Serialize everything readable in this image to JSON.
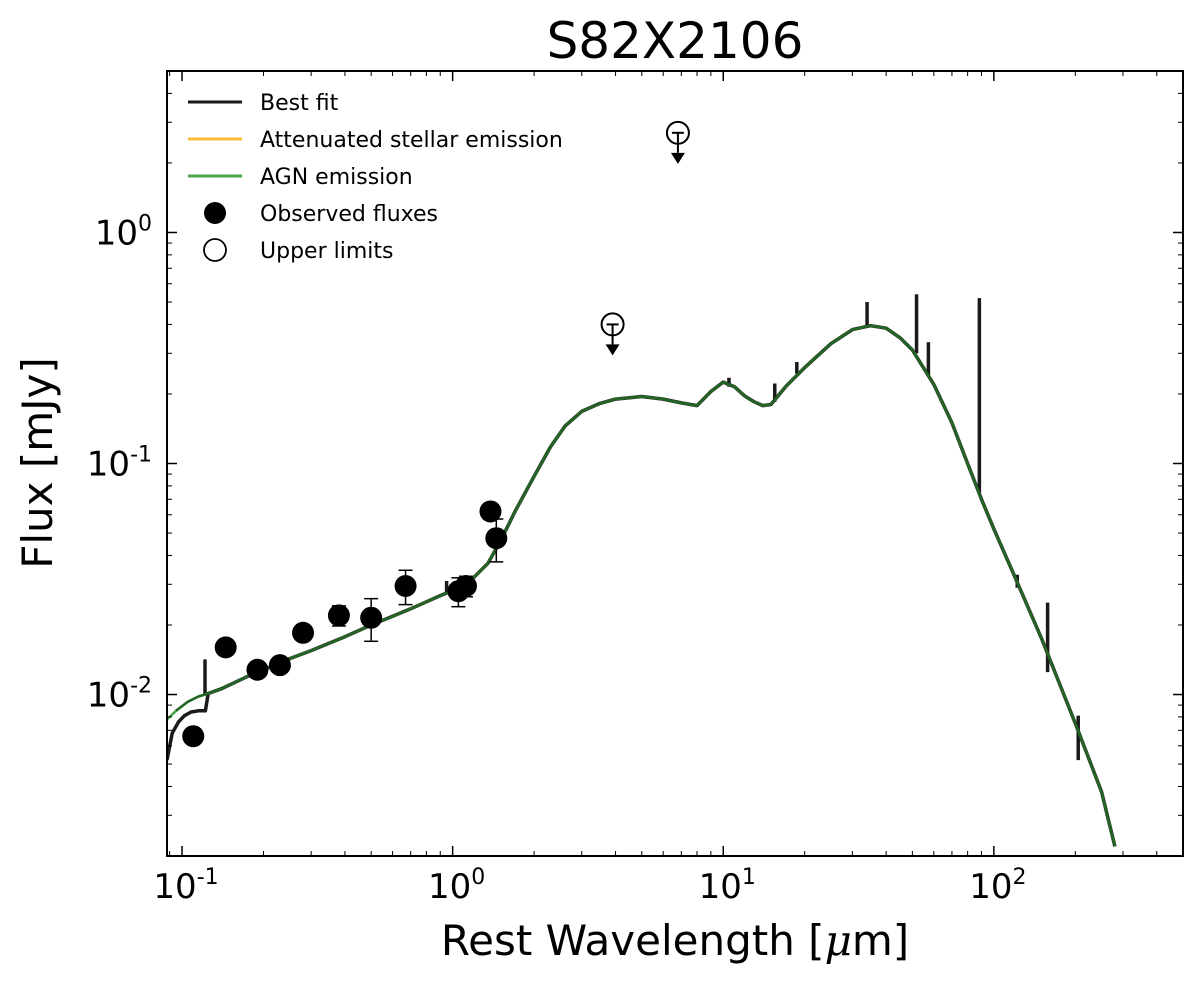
{
  "chart_data": {
    "type": "line",
    "title": "S82X2106",
    "xlabel": "Rest Wavelength [",
    "xlabel_symbol": "μ",
    "xlabel_unit": "m]",
    "ylabel": "Flux [mJy]",
    "xscale": "log",
    "yscale": "log",
    "xlim": [
      0.088,
      500
    ],
    "ylim": [
      0.002,
      5.0
    ],
    "grid": false,
    "legend_position": "top-left",
    "x_ticks": [
      {
        "base": "10",
        "exp": "-1",
        "value": 0.1
      },
      {
        "base": "10",
        "exp": "0",
        "value": 1
      },
      {
        "base": "10",
        "exp": "1",
        "value": 10
      },
      {
        "base": "10",
        "exp": "2",
        "value": 100
      }
    ],
    "y_ticks": [
      {
        "base": "10",
        "exp": "-2",
        "value": 0.01
      },
      {
        "base": "10",
        "exp": "-1",
        "value": 0.1
      },
      {
        "base": "10",
        "exp": "0",
        "value": 1
      }
    ],
    "legend": [
      {
        "label": "Best fit",
        "kind": "line",
        "color": "#1a1a1a"
      },
      {
        "label": "Attenuated stellar emission",
        "kind": "line",
        "color": "#fbbc3a"
      },
      {
        "label": "AGN emission",
        "kind": "line",
        "color": "#4aa24a"
      },
      {
        "label": "Observed fluxes",
        "kind": "filled-circle",
        "color": "#000000"
      },
      {
        "label": "Upper limits",
        "kind": "open-circle",
        "color": "#000000"
      }
    ],
    "series": [
      {
        "name": "AGN emission",
        "color": "#4aa24a",
        "x": [
          0.088,
          0.095,
          0.105,
          0.115,
          0.125,
          0.14,
          0.17,
          0.2,
          0.25,
          0.3,
          0.4,
          0.5,
          0.6,
          0.7,
          0.8,
          0.9,
          1.0,
          1.1,
          1.2,
          1.35,
          1.5,
          1.7,
          2.0,
          2.3,
          2.6,
          3.0,
          3.5,
          4.0,
          5.0,
          6.0,
          7.0,
          8.0,
          9.0,
          10.0,
          11.0,
          12.0,
          13.0,
          14.0,
          15.0,
          17.0,
          20.0,
          25.0,
          30.0,
          35.0,
          40.0,
          45.0,
          50.0,
          60.0,
          70.0,
          80.0,
          90.0,
          100.0,
          120.0,
          150.0,
          200.0,
          250.0,
          280.0
        ],
        "y": [
          0.0078,
          0.0085,
          0.0093,
          0.0098,
          0.0101,
          0.0106,
          0.0118,
          0.0128,
          0.0143,
          0.0155,
          0.0178,
          0.02,
          0.0218,
          0.0235,
          0.0252,
          0.0268,
          0.0282,
          0.03,
          0.0322,
          0.037,
          0.046,
          0.062,
          0.088,
          0.118,
          0.145,
          0.168,
          0.182,
          0.19,
          0.195,
          0.19,
          0.183,
          0.178,
          0.205,
          0.225,
          0.215,
          0.196,
          0.185,
          0.178,
          0.18,
          0.215,
          0.26,
          0.33,
          0.38,
          0.395,
          0.385,
          0.35,
          0.31,
          0.22,
          0.15,
          0.1,
          0.07,
          0.052,
          0.032,
          0.0175,
          0.0075,
          0.0038,
          0.0022
        ]
      },
      {
        "name": "Best fit",
        "color": "#1a1a1a",
        "x": [
          0.088,
          0.092,
          0.097,
          0.102,
          0.108,
          0.115,
          0.122,
          0.125,
          0.14,
          0.17,
          0.2,
          0.25,
          0.3,
          0.4,
          0.5,
          0.6,
          0.7,
          0.8,
          0.9,
          1.0,
          1.1,
          1.2,
          1.35,
          1.5,
          1.7,
          2.0,
          2.3,
          2.6,
          3.0,
          3.5,
          4.0,
          5.0,
          6.0,
          7.0,
          8.0,
          9.0,
          10.0,
          11.0,
          12.0,
          13.0,
          14.0,
          15.0,
          17.0,
          20.0,
          25.0,
          30.0,
          35.0,
          40.0,
          45.0,
          50.0,
          60.0,
          70.0,
          80.0,
          90.0,
          100.0,
          120.0,
          150.0,
          200.0,
          250.0,
          280.0
        ],
        "y": [
          0.0052,
          0.0068,
          0.0076,
          0.0081,
          0.0084,
          0.0085,
          0.0085,
          0.0101,
          0.0106,
          0.0118,
          0.0128,
          0.0143,
          0.0155,
          0.0178,
          0.02,
          0.0218,
          0.0235,
          0.0252,
          0.0268,
          0.0282,
          0.03,
          0.0322,
          0.037,
          0.046,
          0.062,
          0.088,
          0.118,
          0.145,
          0.168,
          0.182,
          0.19,
          0.195,
          0.19,
          0.183,
          0.178,
          0.205,
          0.225,
          0.215,
          0.196,
          0.185,
          0.178,
          0.18,
          0.215,
          0.26,
          0.33,
          0.38,
          0.395,
          0.385,
          0.35,
          0.31,
          0.22,
          0.15,
          0.1,
          0.07,
          0.052,
          0.032,
          0.0175,
          0.0075,
          0.0038,
          0.0022
        ],
        "emission_lines": [
          {
            "x": 0.1216,
            "y_top": 0.0142,
            "y_base": 0.0101
          },
          {
            "x": 0.95,
            "y_top": 0.031,
            "y_base": 0.0275
          },
          {
            "x": 10.5,
            "y_top": 0.235,
            "y_base": 0.215
          },
          {
            "x": 15.5,
            "y_top": 0.222,
            "y_base": 0.185
          },
          {
            "x": 18.7,
            "y_top": 0.275,
            "y_base": 0.245
          },
          {
            "x": 34.0,
            "y_top": 0.5,
            "y_base": 0.395
          },
          {
            "x": 51.8,
            "y_top": 0.54,
            "y_base": 0.3
          },
          {
            "x": 57.3,
            "y_top": 0.335,
            "y_base": 0.24
          },
          {
            "x": 88.4,
            "y_top": 0.52,
            "y_base": 0.074
          },
          {
            "x": 122.0,
            "y_top": 0.033,
            "y_base": 0.029
          },
          {
            "x": 158.0,
            "y_top": 0.025,
            "y_base": 0.0125
          },
          {
            "x": 205.0,
            "y_top": 0.0081,
            "y_base": 0.0052
          }
        ]
      }
    ],
    "observed_fluxes": [
      {
        "x": 0.11,
        "y": 0.0066,
        "yerr": 0
      },
      {
        "x": 0.145,
        "y": 0.016,
        "yerr": 0
      },
      {
        "x": 0.19,
        "y": 0.0128,
        "yerr": 0
      },
      {
        "x": 0.23,
        "y": 0.0134,
        "yerr": 0
      },
      {
        "x": 0.28,
        "y": 0.0185,
        "yerr": 0
      },
      {
        "x": 0.38,
        "y": 0.022,
        "yerr": 0.0022
      },
      {
        "x": 0.5,
        "y": 0.0215,
        "yerr": 0.0045
      },
      {
        "x": 0.67,
        "y": 0.0295,
        "yerr": 0.005
      },
      {
        "x": 1.05,
        "y": 0.028,
        "yerr": 0.004
      },
      {
        "x": 1.12,
        "y": 0.0295,
        "yerr": 0.003
      },
      {
        "x": 1.38,
        "y": 0.062,
        "yerr": 0
      },
      {
        "x": 1.45,
        "y": 0.0475,
        "yerr": 0.01
      }
    ],
    "upper_limits": [
      {
        "x": 3.9,
        "y": 0.4
      },
      {
        "x": 6.8,
        "y": 2.7
      }
    ]
  }
}
